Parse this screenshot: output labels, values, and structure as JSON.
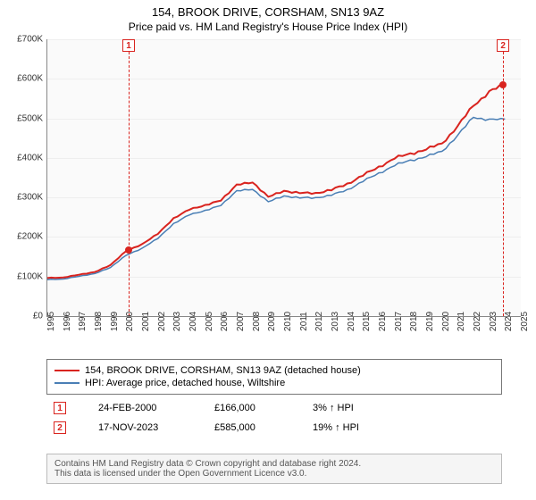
{
  "title_line1": "154, BROOK DRIVE, CORSHAM, SN13 9AZ",
  "title_line2": "Price paid vs. HM Land Registry's House Price Index (HPI)",
  "chart": {
    "type": "line",
    "background_color": "#fafafa",
    "grid_color": "#eeeeee",
    "axis_color": "#888888",
    "x_years": [
      1995,
      1996,
      1997,
      1998,
      1999,
      2000,
      2001,
      2002,
      2003,
      2004,
      2005,
      2006,
      2007,
      2008,
      2009,
      2010,
      2011,
      2012,
      2013,
      2014,
      2015,
      2016,
      2017,
      2018,
      2019,
      2020,
      2021,
      2022,
      2023,
      2024,
      2025
    ],
    "y_ticks": [
      0,
      100000,
      200000,
      300000,
      400000,
      500000,
      600000,
      700000
    ],
    "y_tick_labels": [
      "£0",
      "£100K",
      "£200K",
      "£300K",
      "£400K",
      "£500K",
      "£600K",
      "£700K"
    ],
    "ylim": [
      0,
      700000
    ],
    "xlim": [
      1995,
      2025
    ],
    "tick_fontsize": 10,
    "series": [
      {
        "name": "prop",
        "color": "#d9241f",
        "width": 2,
        "points": [
          [
            1995,
            96000
          ],
          [
            1996,
            98000
          ],
          [
            1997,
            104000
          ],
          [
            1998,
            112000
          ],
          [
            1999,
            128000
          ],
          [
            2000,
            166000
          ],
          [
            2001,
            180000
          ],
          [
            2002,
            210000
          ],
          [
            2003,
            245000
          ],
          [
            2004,
            272000
          ],
          [
            2005,
            278000
          ],
          [
            2006,
            295000
          ],
          [
            2007,
            330000
          ],
          [
            2008,
            340000
          ],
          [
            2009,
            300000
          ],
          [
            2010,
            318000
          ],
          [
            2011,
            310000
          ],
          [
            2012,
            312000
          ],
          [
            2013,
            318000
          ],
          [
            2014,
            335000
          ],
          [
            2015,
            355000
          ],
          [
            2016,
            378000
          ],
          [
            2017,
            398000
          ],
          [
            2018,
            412000
          ],
          [
            2019,
            420000
          ],
          [
            2020,
            438000
          ],
          [
            2021,
            478000
          ],
          [
            2022,
            535000
          ],
          [
            2023,
            565000
          ],
          [
            2023.88,
            585000
          ],
          [
            2024,
            590000
          ]
        ]
      },
      {
        "name": "hpi",
        "color": "#4a7fb5",
        "width": 1.5,
        "points": [
          [
            1995,
            92000
          ],
          [
            1996,
            94000
          ],
          [
            1997,
            100000
          ],
          [
            1998,
            108000
          ],
          [
            1999,
            122000
          ],
          [
            2000,
            155000
          ],
          [
            2001,
            170000
          ],
          [
            2002,
            198000
          ],
          [
            2003,
            232000
          ],
          [
            2004,
            258000
          ],
          [
            2005,
            265000
          ],
          [
            2006,
            282000
          ],
          [
            2007,
            315000
          ],
          [
            2008,
            322000
          ],
          [
            2009,
            288000
          ],
          [
            2010,
            305000
          ],
          [
            2011,
            298000
          ],
          [
            2012,
            300000
          ],
          [
            2013,
            305000
          ],
          [
            2014,
            320000
          ],
          [
            2015,
            340000
          ],
          [
            2016,
            362000
          ],
          [
            2017,
            380000
          ],
          [
            2018,
            395000
          ],
          [
            2019,
            402000
          ],
          [
            2020,
            418000
          ],
          [
            2021,
            455000
          ],
          [
            2022,
            505000
          ],
          [
            2023,
            495000
          ],
          [
            2024,
            498000
          ]
        ]
      }
    ],
    "data_points": [
      {
        "x": 2000.15,
        "y": 166000,
        "color": "#d9241f"
      },
      {
        "x": 2023.88,
        "y": 585000,
        "color": "#d9241f"
      }
    ],
    "markers": [
      {
        "n": "1",
        "x": 2000.15,
        "color": "#d9241f"
      },
      {
        "n": "2",
        "x": 2023.88,
        "color": "#d9241f"
      }
    ]
  },
  "legend": {
    "items": [
      {
        "color": "#d9241f",
        "label": "154, BROOK DRIVE, CORSHAM, SN13 9AZ (detached house)"
      },
      {
        "color": "#4a7fb5",
        "label": "HPI: Average price, detached house, Wiltshire"
      }
    ]
  },
  "events": [
    {
      "n": "1",
      "color": "#d9241f",
      "date": "24-FEB-2000",
      "price": "£166,000",
      "pct": "3% ↑ HPI"
    },
    {
      "n": "2",
      "color": "#d9241f",
      "date": "17-NOV-2023",
      "price": "£585,000",
      "pct": "19% ↑ HPI"
    }
  ],
  "credits": {
    "line1": "Contains HM Land Registry data © Crown copyright and database right 2024.",
    "line2": "This data is licensed under the Open Government Licence v3.0."
  }
}
